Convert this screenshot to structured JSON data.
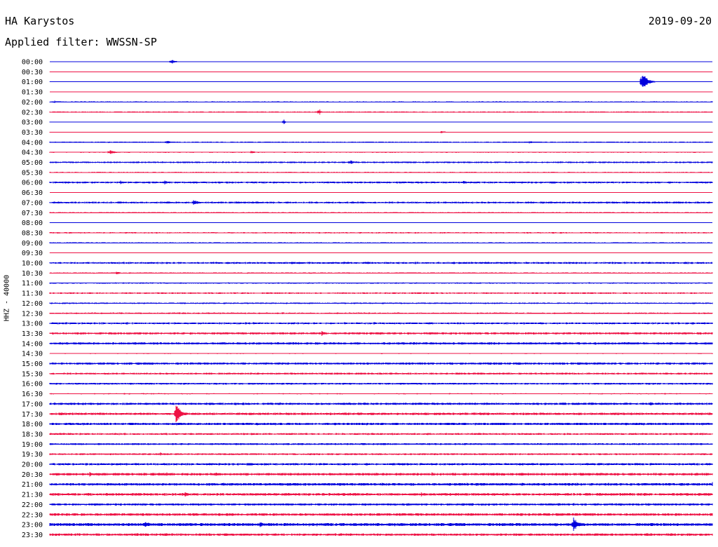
{
  "header": {
    "station": "HA Karystos",
    "date": "2019-09-20",
    "filter": "Applied filter: WWSSN-SP"
  },
  "channel_label": "HHZ - 40000",
  "colors": {
    "even_trace": "#0000dd",
    "odd_trace": "#ee1144",
    "background": "#ffffff",
    "text": "#000000"
  },
  "chart_data": {
    "type": "line",
    "title": "HA Karystos",
    "subtitle": "Applied filter: WWSSN-SP",
    "ylabel": "HHZ - 40000",
    "xlabel": "",
    "row_labels": [
      "00:00",
      "00:30",
      "01:00",
      "01:30",
      "02:00",
      "02:30",
      "03:00",
      "03:30",
      "04:00",
      "04:30",
      "05:00",
      "05:30",
      "06:00",
      "06:30",
      "07:00",
      "07:30",
      "08:00",
      "08:30",
      "09:00",
      "09:30",
      "10:00",
      "10:30",
      "11:00",
      "11:30",
      "12:00",
      "12:30",
      "13:00",
      "13:30",
      "14:00",
      "14:30",
      "15:00",
      "15:30",
      "16:00",
      "16:30",
      "17:00",
      "17:30",
      "18:00",
      "18:30",
      "19:00",
      "19:30",
      "20:00",
      "20:30",
      "21:00",
      "21:30",
      "22:00",
      "22:30",
      "23:00",
      "23:30"
    ],
    "row_colors": [
      "blue",
      "red"
    ],
    "noise_levels": [
      0.2,
      0.2,
      0.4,
      0.3,
      0.6,
      0.6,
      0.3,
      0.5,
      0.7,
      0.6,
      0.9,
      0.6,
      1.0,
      0.3,
      1.0,
      0.6,
      0.3,
      0.7,
      0.6,
      0.3,
      1.0,
      0.7,
      0.7,
      0.8,
      0.8,
      0.8,
      1.0,
      1.2,
      1.2,
      0.5,
      1.2,
      1.0,
      1.0,
      0.6,
      1.2,
      1.3,
      1.3,
      1.0,
      1.0,
      1.0,
      1.2,
      1.4,
      1.4,
      1.4,
      1.2,
      1.4,
      1.6,
      1.3
    ],
    "events": [
      {
        "row": 0,
        "minute": 5.5,
        "amp": 4,
        "dur": 0.5
      },
      {
        "row": 2,
        "minute": 26.8,
        "amp": 16,
        "dur": 0.6
      },
      {
        "row": 4,
        "minute": 0.2,
        "amp": 2.5,
        "dur": 0.4
      },
      {
        "row": 5,
        "minute": 12.2,
        "amp": 6,
        "dur": 0.15
      },
      {
        "row": 5,
        "minute": 26.1,
        "amp": 2,
        "dur": 0.4
      },
      {
        "row": 6,
        "minute": 10.6,
        "amp": 6,
        "dur": 0.15
      },
      {
        "row": 7,
        "minute": 17.7,
        "amp": 2,
        "dur": 0.8
      },
      {
        "row": 8,
        "minute": 5.3,
        "amp": 3,
        "dur": 0.5
      },
      {
        "row": 8,
        "minute": 21.7,
        "amp": 2,
        "dur": 1.0
      },
      {
        "row": 9,
        "minute": 2.7,
        "amp": 4,
        "dur": 0.6
      },
      {
        "row": 9,
        "minute": 9.1,
        "amp": 2.5,
        "dur": 0.5
      },
      {
        "row": 10,
        "minute": 13.6,
        "amp": 4,
        "dur": 0.4
      },
      {
        "row": 12,
        "minute": 3.2,
        "amp": 3,
        "dur": 0.3
      },
      {
        "row": 12,
        "minute": 5.2,
        "amp": 3,
        "dur": 0.5
      },
      {
        "row": 12,
        "minute": 18.7,
        "amp": 3,
        "dur": 0.6
      },
      {
        "row": 14,
        "minute": 6.5,
        "amp": 5,
        "dur": 0.6
      },
      {
        "row": 14,
        "minute": 26.1,
        "amp": 2.5,
        "dur": 0.3
      },
      {
        "row": 21,
        "minute": 3.0,
        "amp": 2.5,
        "dur": 0.6
      },
      {
        "row": 25,
        "minute": 8.2,
        "amp": 2,
        "dur": 0.7
      },
      {
        "row": 27,
        "minute": 10.0,
        "amp": 2,
        "dur": 0.8
      },
      {
        "row": 27,
        "minute": 12.3,
        "amp": 4,
        "dur": 0.5
      },
      {
        "row": 28,
        "minute": 8.8,
        "amp": 2,
        "dur": 0.4
      },
      {
        "row": 28,
        "minute": 10.3,
        "amp": 2,
        "dur": 0.4
      },
      {
        "row": 30,
        "minute": 13.6,
        "amp": 2.5,
        "dur": 0.4
      },
      {
        "row": 34,
        "minute": 27.2,
        "amp": 3.5,
        "dur": 0.3
      },
      {
        "row": 35,
        "minute": 5.7,
        "amp": 16,
        "dur": 0.6
      },
      {
        "row": 39,
        "minute": 5.0,
        "amp": 3,
        "dur": 0.3
      },
      {
        "row": 41,
        "minute": 1.8,
        "amp": 4,
        "dur": 0.5
      },
      {
        "row": 41,
        "minute": 5.3,
        "amp": 3,
        "dur": 0.4
      },
      {
        "row": 41,
        "minute": 7.5,
        "amp": 4,
        "dur": 0.5
      },
      {
        "row": 41,
        "minute": 17.3,
        "amp": 3,
        "dur": 0.4
      },
      {
        "row": 42,
        "minute": 30.0,
        "amp": 4,
        "dur": 0.3
      },
      {
        "row": 43,
        "minute": 6.1,
        "amp": 4,
        "dur": 0.6
      },
      {
        "row": 43,
        "minute": 16.8,
        "amp": 5,
        "dur": 0.15
      },
      {
        "row": 44,
        "minute": 23.0,
        "amp": 2.5,
        "dur": 0.6
      },
      {
        "row": 46,
        "minute": 4.3,
        "amp": 6,
        "dur": 0.6
      },
      {
        "row": 46,
        "minute": 9.5,
        "amp": 6,
        "dur": 0.4
      },
      {
        "row": 46,
        "minute": 14.8,
        "amp": 4,
        "dur": 0.5
      },
      {
        "row": 46,
        "minute": 23.7,
        "amp": 12,
        "dur": 0.6
      }
    ]
  }
}
